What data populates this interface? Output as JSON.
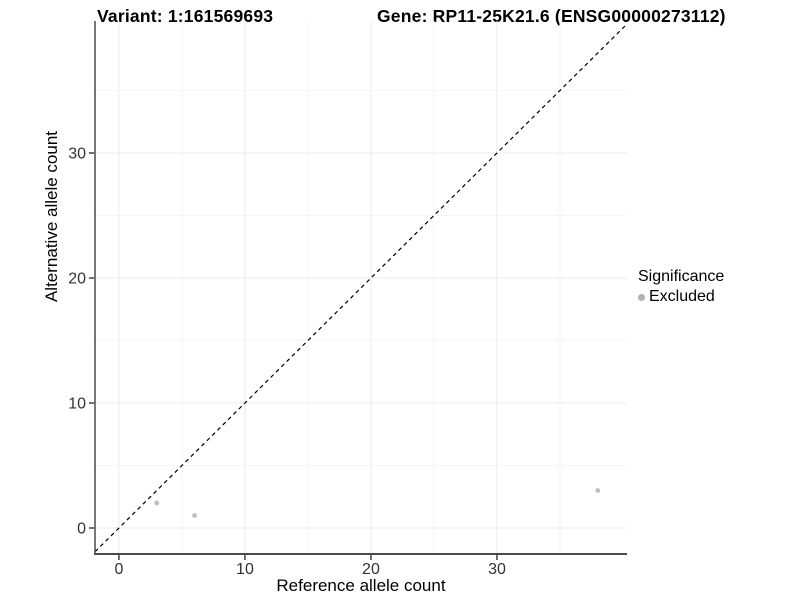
{
  "chart_data": {
    "type": "scatter",
    "title_left": "Variant: 1:161569693",
    "title_right": "Gene: RP11-25K21.6 (ENSG00000273112)",
    "xlabel": "Reference allele count",
    "ylabel": "Alternative allele count",
    "x_ticks": [
      0,
      10,
      20,
      30
    ],
    "y_ticks": [
      0,
      10,
      20,
      30
    ],
    "x_minor_ticks": [
      5,
      15,
      25,
      35
    ],
    "y_minor_ticks": [
      5,
      15,
      25,
      35
    ],
    "xlim": [
      -1.9,
      40.32
    ],
    "ylim": [
      -2.08,
      40.56
    ],
    "grid": "major and minor gridlines, light gray on white",
    "identity_line": {
      "style": "dashed",
      "slope": 1,
      "intercept": 0,
      "from": -1.9,
      "to": 40.32
    },
    "series": [
      {
        "name": "Excluded",
        "color": "#c0c0c0",
        "points": [
          {
            "x": 3,
            "y": 2
          },
          {
            "x": 6,
            "y": 1
          },
          {
            "x": 38,
            "y": 3
          }
        ]
      }
    ],
    "legend": {
      "title": "Significance",
      "position": "right-middle",
      "items": [
        {
          "label": "Excluded",
          "color": "#b0b0b0"
        }
      ]
    },
    "colors": {
      "background": "#ffffff",
      "point": "#c0c0c0",
      "identity_line": "#000000",
      "axis_line": "#4a4a4a",
      "grid_major": "#ebebeb",
      "grid_minor": "#f5f5f5",
      "tick_text": "#333333",
      "title_text": "#000000"
    }
  }
}
